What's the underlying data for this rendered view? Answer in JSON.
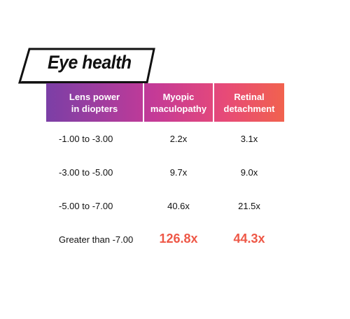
{
  "title": "Eye health",
  "colors": {
    "gradient_start": "#7b3fa6",
    "gradient_mid": "#c43a97",
    "gradient_end": "#f1624e",
    "highlight": "#ee5847"
  },
  "chart_data": {
    "type": "table",
    "title": "Eye health",
    "columns": [
      "Lens power\nin diopters",
      "Myopic\nmaculopathy",
      "Retinal\ndetachment"
    ],
    "rows": [
      {
        "label": "-1.00 to -3.00",
        "values": [
          "2.2x",
          "3.1x"
        ]
      },
      {
        "label": "-3.00 to -5.00",
        "values": [
          "9.7x",
          "9.0x"
        ]
      },
      {
        "label": "-5.00 to -7.00",
        "values": [
          "40.6x",
          "21.5x"
        ]
      },
      {
        "label": "Greater than -7.00",
        "values": [
          "126.8x",
          "44.3x"
        ],
        "highlighted": true
      }
    ]
  }
}
